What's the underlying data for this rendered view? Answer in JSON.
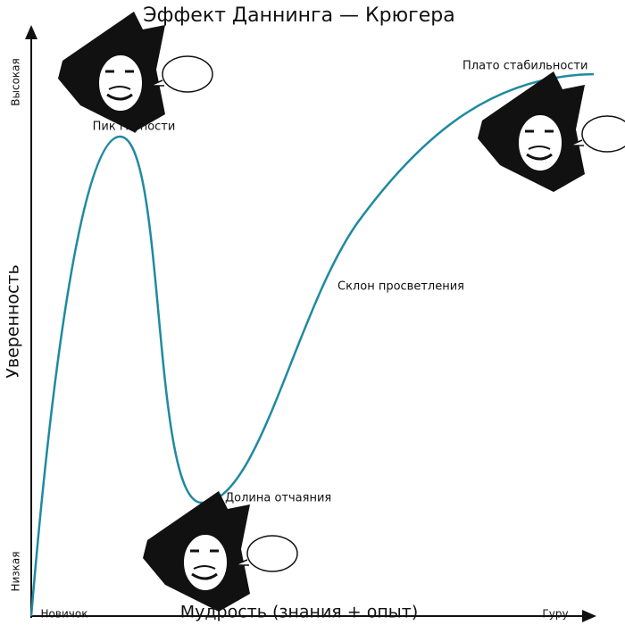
{
  "header": {
    "title": "Эффект Даннинга — Крюгера"
  },
  "y_axis": {
    "label": "Уверенность",
    "high": "Высокая",
    "low": "Низкая"
  },
  "x_axis": {
    "label": "Мудрость (знания + опыт)",
    "start": "Новичок",
    "end": "Гуру"
  },
  "stages": {
    "peak": "Пик глупости",
    "valley": "Долина отчаяния",
    "slope": "Склон просветления",
    "plateau": "Плато стабильности"
  }
}
